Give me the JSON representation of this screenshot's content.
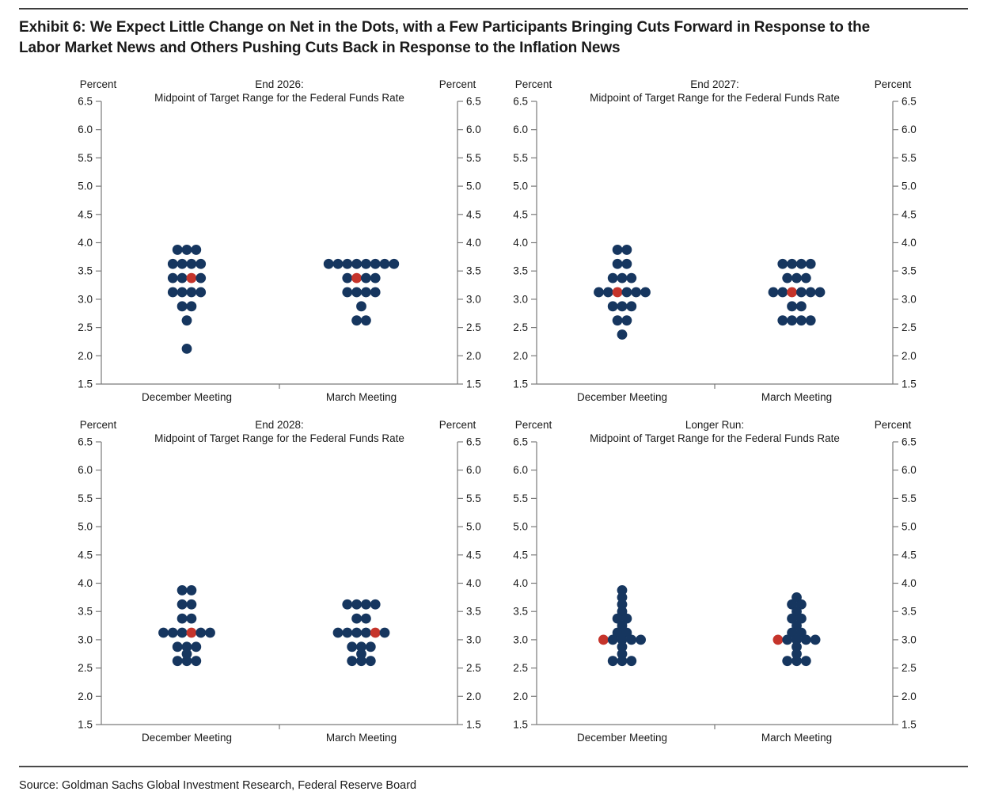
{
  "title_line1": "Exhibit 6: We Expect Little Change on Net in the Dots, with a Few Participants Bringing Cuts Forward in Response to the",
  "title_line2": "Labor Market News and Others Pushing Cuts Back in Response to the Inflation News",
  "source": "Source: Goldman Sachs Global Investment Research, Federal Reserve Board",
  "colors": {
    "dot_navy": "#16365F",
    "dot_red": "#C5342B",
    "axis": "#7a7a7a",
    "text": "#1a1a1a"
  },
  "chart_data": [
    {
      "type": "scatter",
      "title_line1": "End 2026:",
      "title_line2": "Midpoint of Target Range for the Federal Funds Rate",
      "ylabel": "Percent",
      "ylim": [
        1.5,
        6.5
      ],
      "yticks": [
        "6.5",
        "6.0",
        "5.5",
        "5.0",
        "4.5",
        "4.0",
        "3.5",
        "3.0",
        "2.5",
        "2.0",
        "1.5"
      ],
      "grid": false,
      "categories": [
        "December Meeting",
        "March Meeting"
      ],
      "median_color_meaning": "red dot = median",
      "series": [
        {
          "name": "December Meeting",
          "median": 3.375,
          "rows": [
            {
              "v": 3.875,
              "n": 3
            },
            {
              "v": 3.625,
              "n": 4
            },
            {
              "v": 3.375,
              "n": 4,
              "red": 3
            },
            {
              "v": 3.125,
              "n": 4
            },
            {
              "v": 2.875,
              "n": 2
            },
            {
              "v": 2.625,
              "n": 1
            },
            {
              "v": 2.125,
              "n": 1
            }
          ]
        },
        {
          "name": "March Meeting",
          "median": 3.375,
          "rows": [
            {
              "v": 3.625,
              "n": 8
            },
            {
              "v": 3.375,
              "n": 4,
              "red": 2
            },
            {
              "v": 3.125,
              "n": 4
            },
            {
              "v": 2.875,
              "n": 1
            },
            {
              "v": 2.625,
              "n": 2
            }
          ]
        }
      ]
    },
    {
      "type": "scatter",
      "title_line1": "End 2027:",
      "title_line2": "Midpoint of Target Range for the Federal Funds Rate",
      "ylabel": "Percent",
      "ylim": [
        1.5,
        6.5
      ],
      "yticks": [
        "6.5",
        "6.0",
        "5.5",
        "5.0",
        "4.5",
        "4.0",
        "3.5",
        "3.0",
        "2.5",
        "2.0",
        "1.5"
      ],
      "grid": false,
      "categories": [
        "December Meeting",
        "March Meeting"
      ],
      "median_color_meaning": "red dot = median",
      "series": [
        {
          "name": "December Meeting",
          "median": 3.125,
          "rows": [
            {
              "v": 3.875,
              "n": 2
            },
            {
              "v": 3.625,
              "n": 2
            },
            {
              "v": 3.375,
              "n": 3
            },
            {
              "v": 3.125,
              "n": 6,
              "red": 3
            },
            {
              "v": 2.875,
              "n": 3
            },
            {
              "v": 2.625,
              "n": 2
            },
            {
              "v": 2.375,
              "n": 1
            }
          ]
        },
        {
          "name": "March Meeting",
          "median": 3.125,
          "rows": [
            {
              "v": 3.625,
              "n": 4
            },
            {
              "v": 3.375,
              "n": 3
            },
            {
              "v": 3.125,
              "n": 6,
              "red": 3
            },
            {
              "v": 2.875,
              "n": 2
            },
            {
              "v": 2.625,
              "n": 4
            }
          ]
        }
      ]
    },
    {
      "type": "scatter",
      "title_line1": "End 2028:",
      "title_line2": "Midpoint of Target Range for the Federal Funds Rate",
      "ylabel": "Percent",
      "ylim": [
        1.5,
        6.5
      ],
      "yticks": [
        "6.5",
        "6.0",
        "5.5",
        "5.0",
        "4.5",
        "4.0",
        "3.5",
        "3.0",
        "2.5",
        "2.0",
        "1.5"
      ],
      "grid": false,
      "categories": [
        "December Meeting",
        "March Meeting"
      ],
      "median_color_meaning": "red dot = median",
      "series": [
        {
          "name": "December Meeting",
          "median": 3.125,
          "rows": [
            {
              "v": 3.875,
              "n": 2
            },
            {
              "v": 3.625,
              "n": 2
            },
            {
              "v": 3.375,
              "n": 2
            },
            {
              "v": 3.125,
              "n": 6,
              "red": 4
            },
            {
              "v": 2.875,
              "n": 3
            },
            {
              "v": 2.75,
              "n": 1
            },
            {
              "v": 2.625,
              "n": 3
            }
          ]
        },
        {
          "name": "March Meeting",
          "median": 3.125,
          "rows": [
            {
              "v": 3.625,
              "n": 4
            },
            {
              "v": 3.375,
              "n": 2
            },
            {
              "v": 3.125,
              "n": 6,
              "red": 5
            },
            {
              "v": 2.875,
              "n": 3
            },
            {
              "v": 2.75,
              "n": 1
            },
            {
              "v": 2.625,
              "n": 3
            }
          ]
        }
      ]
    },
    {
      "type": "scatter",
      "title_line1": "Longer Run:",
      "title_line2": "Midpoint of Target Range for the Federal Funds Rate",
      "ylabel": "Percent",
      "ylim": [
        1.5,
        6.5
      ],
      "yticks": [
        "6.5",
        "6.0",
        "5.5",
        "5.0",
        "4.5",
        "4.0",
        "3.5",
        "3.0",
        "2.5",
        "2.0",
        "1.5"
      ],
      "grid": false,
      "categories": [
        "December Meeting",
        "March Meeting"
      ],
      "median_color_meaning": "red dot = median",
      "series": [
        {
          "name": "December Meeting",
          "median": 3.0,
          "rows": [
            {
              "v": 3.875,
              "n": 1
            },
            {
              "v": 3.75,
              "n": 1
            },
            {
              "v": 3.625,
              "n": 1
            },
            {
              "v": 3.5,
              "n": 1
            },
            {
              "v": 3.375,
              "n": 2
            },
            {
              "v": 3.25,
              "n": 1
            },
            {
              "v": 3.125,
              "n": 2
            },
            {
              "v": 3.0,
              "n": 5,
              "red": 1
            },
            {
              "v": 2.875,
              "n": 1
            },
            {
              "v": 2.75,
              "n": 1
            },
            {
              "v": 2.625,
              "n": 3
            }
          ]
        },
        {
          "name": "March Meeting",
          "median": 3.0,
          "rows": [
            {
              "v": 3.75,
              "n": 1
            },
            {
              "v": 3.625,
              "n": 2
            },
            {
              "v": 3.5,
              "n": 1
            },
            {
              "v": 3.375,
              "n": 2
            },
            {
              "v": 3.25,
              "n": 1
            },
            {
              "v": 3.125,
              "n": 2
            },
            {
              "v": 3.0,
              "n": 5,
              "red": 1
            },
            {
              "v": 2.875,
              "n": 1
            },
            {
              "v": 2.75,
              "n": 1
            },
            {
              "v": 2.625,
              "n": 3
            }
          ]
        }
      ]
    }
  ]
}
